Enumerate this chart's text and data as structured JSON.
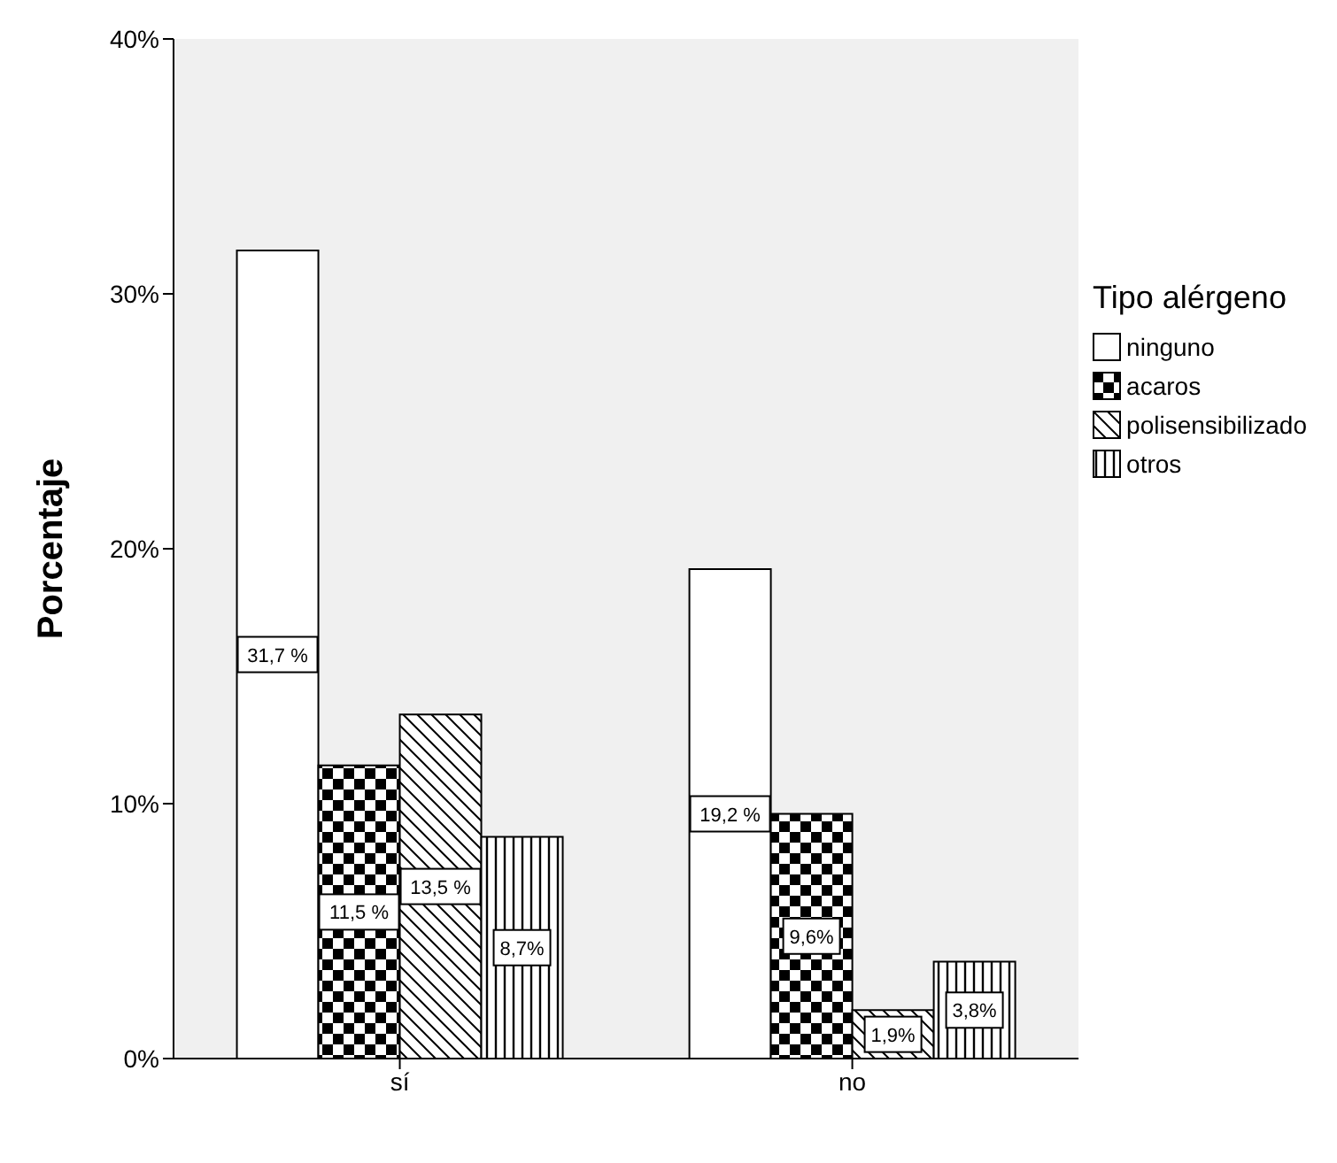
{
  "chart_data": {
    "type": "bar",
    "ylabel": "Porcentaje",
    "legend_title": "Tipo alérgeno",
    "legend": "right",
    "categories": [
      "sí",
      "no"
    ],
    "series": [
      {
        "name": "ninguno",
        "color": "#ffffff",
        "values": [
          31.7,
          19.2
        ],
        "value_labels": [
          "31,7 %",
          "19,2 %"
        ]
      },
      {
        "name": "acaros",
        "color": "#000000",
        "values": [
          11.5,
          9.6
        ],
        "value_labels": [
          "11,5 %",
          "9,6%"
        ]
      },
      {
        "name": "polisensibilizado",
        "color": "#000000",
        "values": [
          13.5,
          1.9
        ],
        "value_labels": [
          "13,5 %",
          "1,9%"
        ]
      },
      {
        "name": "otros",
        "color": "#000000",
        "values": [
          8.7,
          3.8
        ],
        "value_labels": [
          "8,7%",
          "3,8%"
        ]
      }
    ],
    "ylim": [
      0,
      40
    ],
    "yticks": [
      {
        "value": 0,
        "label": "0%"
      },
      {
        "value": 10,
        "label": "10%"
      },
      {
        "value": 20,
        "label": "20%"
      },
      {
        "value": 30,
        "label": "30%"
      },
      {
        "value": 40,
        "label": "40%"
      }
    ],
    "grid": false
  }
}
